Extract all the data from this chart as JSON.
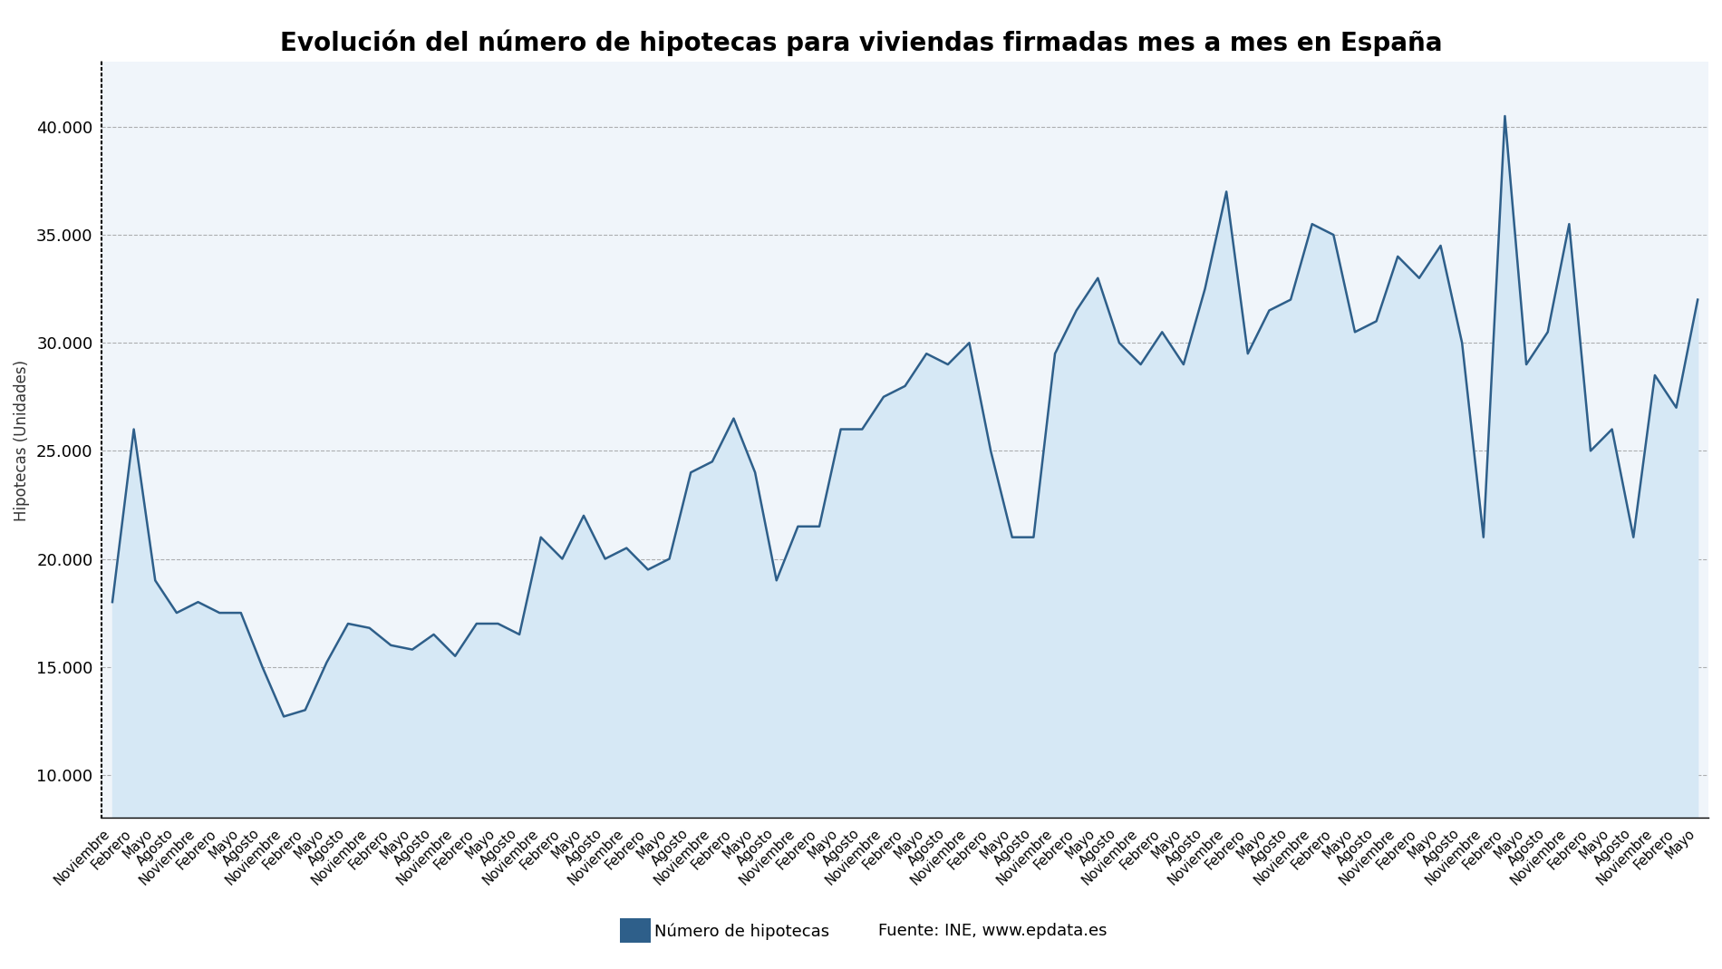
{
  "title": "Evolución del número de hipotecas para viviendas firmadas mes a mes en España",
  "ylabel": "Hipotecas (Unidades)",
  "line_color": "#2E5F8A",
  "fill_color": "#D6E8F5",
  "background_color": "#F0F5FA",
  "legend_label": "Número de hipotecas",
  "source_text": "Fuente: INE, www.epdata.es",
  "ylim": [
    8000,
    43000
  ],
  "yticks": [
    10000,
    15000,
    20000,
    25000,
    30000,
    35000,
    40000
  ],
  "values": [
    18000,
    26000,
    19000,
    17500,
    18000,
    17500,
    17500,
    15000,
    12700,
    13000,
    15200,
    17000,
    16800,
    16000,
    15800,
    16500,
    15500,
    17000,
    17000,
    16500,
    21000,
    20000,
    22000,
    20000,
    20500,
    19500,
    20000,
    24000,
    24500,
    26500,
    24000,
    19000,
    21500,
    21500,
    26000,
    26000,
    27500,
    28000,
    29500,
    29000,
    30000,
    25000,
    21000,
    21000,
    29500,
    31500,
    33000,
    30000,
    29000,
    30500,
    29000,
    32500,
    37000,
    29500,
    31500,
    32000,
    35500,
    35000,
    30500,
    31000,
    34000,
    33000,
    34500,
    30000,
    21000,
    40500,
    29000,
    30500,
    35500,
    25000,
    26000,
    21000,
    28500,
    27000,
    32000
  ],
  "x_labels": [
    "Noviembre",
    "Febrero",
    "Mayo",
    "Agosto",
    "Noviembre",
    "Febrero",
    "Mayo",
    "Agosto",
    "Noviembre",
    "Febrero",
    "Mayo",
    "Agosto",
    "Noviembre",
    "Febrero",
    "Mayo",
    "Agosto",
    "Noviembre",
    "Febrero",
    "Mayo",
    "Agosto",
    "Noviembre",
    "Febrero",
    "Mayo",
    "Agosto",
    "Noviembre",
    "Febrero",
    "Mayo",
    "Agosto",
    "Noviembre",
    "Febrero",
    "Mayo",
    "Agosto",
    "Noviembre",
    "Febrero",
    "Mayo",
    "Agosto",
    "Noviembre",
    "Febrero",
    "Mayo",
    "Agosto",
    "Noviembre",
    "Febrero",
    "Mayo",
    "Agosto",
    "Noviembre",
    "Febrero",
    "Mayo",
    "Agosto",
    "Noviembre",
    "Febrero",
    "Mayo",
    "Agosto",
    "Noviembre",
    "Febrero",
    "Mayo",
    "Agosto",
    "Noviembre",
    "Febrero",
    "Mayo",
    "Agosto",
    "Noviembre",
    "Febrero",
    "Mayo",
    "Agosto",
    "Noviembre",
    "Febrero",
    "Mayo",
    "Agosto",
    "Noviembre",
    "Febrero",
    "Mayo",
    "Agosto",
    "Noviembre",
    "Febrero",
    "Mayo"
  ]
}
